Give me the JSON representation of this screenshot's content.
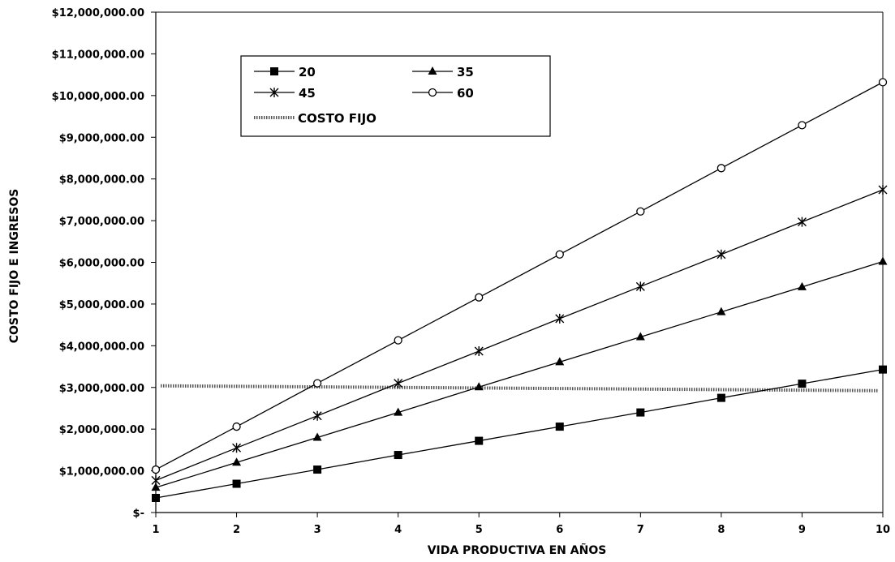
{
  "chart_data": {
    "type": "line",
    "title": "",
    "xlabel": "VIDA PRODUCTIVA EN AÑOS",
    "ylabel": "COSTO FIJO E INGRESOS",
    "x": [
      1,
      2,
      3,
      4,
      5,
      6,
      7,
      8,
      9,
      10
    ],
    "xlim": [
      1,
      10
    ],
    "ylim": [
      0,
      12000000
    ],
    "x_tick_labels": [
      "1",
      "2",
      "3",
      "4",
      "5",
      "6",
      "7",
      "8",
      "9",
      "10"
    ],
    "y_tick_values": [
      0,
      1000000,
      2000000,
      3000000,
      4000000,
      5000000,
      6000000,
      7000000,
      8000000,
      9000000,
      10000000,
      11000000,
      12000000
    ],
    "y_tick_labels": [
      "$-",
      "$1,000,000.00",
      "$2,000,000.00",
      "$3,000,000.00",
      "$4,000,000.00",
      "$5,000,000.00",
      "$6,000,000.00",
      "$7,000,000.00",
      "$8,000,000.00",
      "$9,000,000.00",
      "$10,000,000.00",
      "$11,000,000.00",
      "$12,000,000.00"
    ],
    "grid": false,
    "legend_position": "top-left",
    "series": [
      {
        "name": "20",
        "marker": "square",
        "color": "#000000",
        "values": [
          350000,
          690000,
          1030000,
          1380000,
          1720000,
          2060000,
          2400000,
          2750000,
          3090000,
          3430000
        ]
      },
      {
        "name": "35",
        "marker": "triangle",
        "color": "#000000",
        "values": [
          600000,
          1200000,
          1800000,
          2400000,
          3010000,
          3610000,
          4210000,
          4810000,
          5410000,
          6020000
        ]
      },
      {
        "name": "45",
        "marker": "star",
        "color": "#000000",
        "values": [
          770000,
          1550000,
          2320000,
          3100000,
          3870000,
          4650000,
          5420000,
          6190000,
          6970000,
          7740000
        ]
      },
      {
        "name": "60",
        "marker": "circle",
        "color": "#000000",
        "values": [
          1030000,
          2060000,
          3100000,
          4130000,
          5160000,
          6190000,
          7220000,
          8260000,
          9290000,
          10320000
        ]
      }
    ],
    "reference_line": {
      "name": "COSTO FIJO",
      "value": 3000000,
      "style": "hatched",
      "color": "#555555"
    }
  }
}
